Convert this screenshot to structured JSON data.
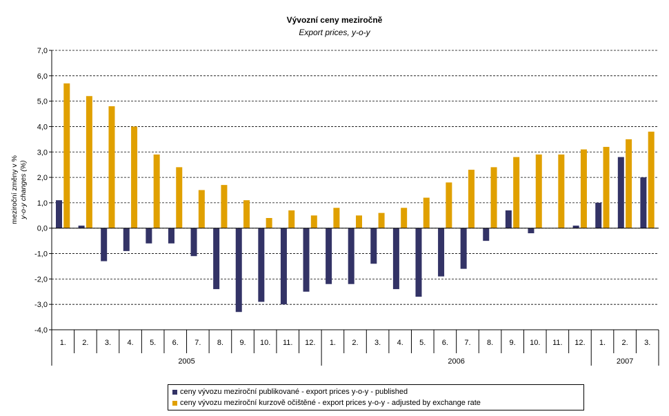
{
  "chart_data": {
    "type": "bar",
    "title": "Vývozní ceny meziročně",
    "subtitle": "Export prices, y-o-y",
    "ylabel_line1": "meziroční změny v %",
    "ylabel_line2": "y-o-y changes (%)",
    "ylim": [
      -4,
      7
    ],
    "yticks": [
      7,
      6,
      5,
      4,
      3,
      2,
      1,
      0,
      -1,
      -2,
      -3,
      -4
    ],
    "ytick_labels": [
      "7,0",
      "6,0",
      "5,0",
      "4,0",
      "3,0",
      "2,0",
      "1,0",
      "0,0",
      "-1,0",
      "-2,0",
      "-3,0",
      "-4,0"
    ],
    "grid": "horizontal dashed",
    "categories": [
      "1.",
      "2.",
      "3.",
      "4.",
      "5.",
      "6.",
      "7.",
      "8.",
      "9.",
      "10.",
      "11.",
      "12.",
      "1.",
      "2.",
      "3.",
      "4.",
      "5.",
      "6.",
      "7.",
      "8.",
      "9.",
      "10.",
      "11.",
      "12.",
      "1.",
      "2.",
      "3."
    ],
    "year_groups": [
      {
        "label": "2005",
        "count": 12
      },
      {
        "label": "2006",
        "count": 12
      },
      {
        "label": "2007",
        "count": 3
      }
    ],
    "series": [
      {
        "name": "ceny vývozu meziroční publikované  - export prices y-o-y - published",
        "color": "#333366",
        "values": [
          1.1,
          0.1,
          -1.3,
          -0.9,
          -0.6,
          -0.6,
          -1.1,
          -2.4,
          -3.3,
          -2.9,
          -3.0,
          -2.5,
          -2.2,
          -2.2,
          -1.4,
          -2.4,
          -2.7,
          -1.9,
          -1.6,
          -0.5,
          0.7,
          -0.2,
          0.0,
          0.1,
          1.0,
          2.8,
          2.0
        ]
      },
      {
        "name": "ceny vývozu meziroční kurzově očištěné - export prices y-o-y - adjusted by exchange rate",
        "color": "#E0A000",
        "values": [
          5.7,
          5.2,
          4.8,
          4.0,
          2.9,
          2.4,
          1.5,
          1.7,
          1.1,
          0.4,
          0.7,
          0.5,
          0.8,
          0.5,
          0.6,
          0.8,
          1.2,
          1.8,
          2.3,
          2.4,
          2.8,
          2.9,
          2.9,
          3.1,
          3.2,
          3.5,
          3.8
        ]
      }
    ]
  }
}
